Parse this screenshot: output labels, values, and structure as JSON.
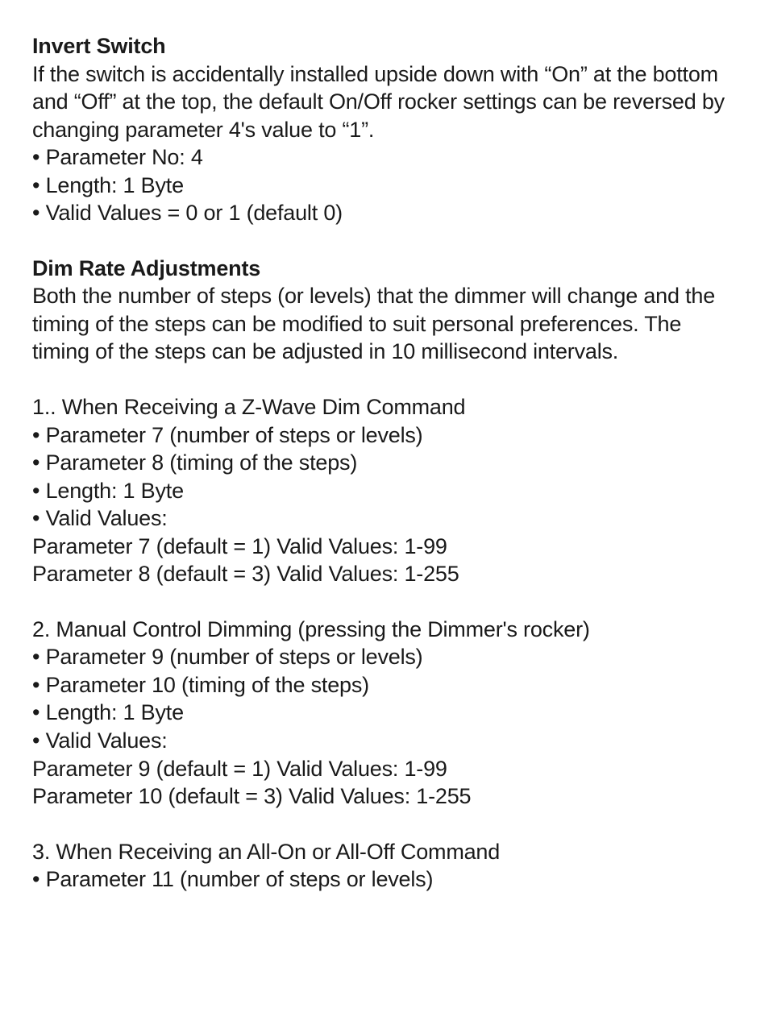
{
  "section1": {
    "heading": "Invert Switch",
    "body": "If the switch is accidentally installed upside down with “On” at the bottom and “Off” at the top, the default On/Off rocker settings can be reversed by changing parameter 4's value to “1”.",
    "bullets": [
      "Parameter No: 4",
      "Length: 1 Byte",
      "Valid Values = 0 or 1 (default 0)"
    ]
  },
  "section2": {
    "heading": "Dim Rate Adjustments",
    "body": "Both the number of steps (or levels) that the dimmer will change and the timing of the steps can be modified to suit personal preferences.  The timing of the steps can be adjusted in 10 millisecond intervals."
  },
  "sub1": {
    "title": "1.. When Receiving a Z-Wave Dim Command",
    "bullets": [
      "Parameter 7 (number of steps or levels)",
      "Parameter 8 (timing of the steps)",
      "Length: 1 Byte",
      "Valid Values:"
    ],
    "lines": [
      "Parameter 7 (default = 1) Valid Values: 1-99",
      "Parameter 8 (default = 3) Valid Values: 1-255"
    ]
  },
  "sub2": {
    "title": "2. Manual Control Dimming (pressing the Dimmer's rocker)",
    "bullets": [
      "Parameter 9 (number of steps or levels)",
      "Parameter 10 (timing of the steps)",
      "Length: 1 Byte",
      "Valid Values:"
    ],
    "lines": [
      "Parameter 9 (default = 1) Valid Values: 1-99",
      "Parameter 10 (default = 3) Valid Values: 1-255"
    ]
  },
  "sub3": {
    "title": "3. When Receiving an All-On or All-Off Command",
    "bullets": [
      "Parameter 11 (number of steps or levels)"
    ]
  }
}
